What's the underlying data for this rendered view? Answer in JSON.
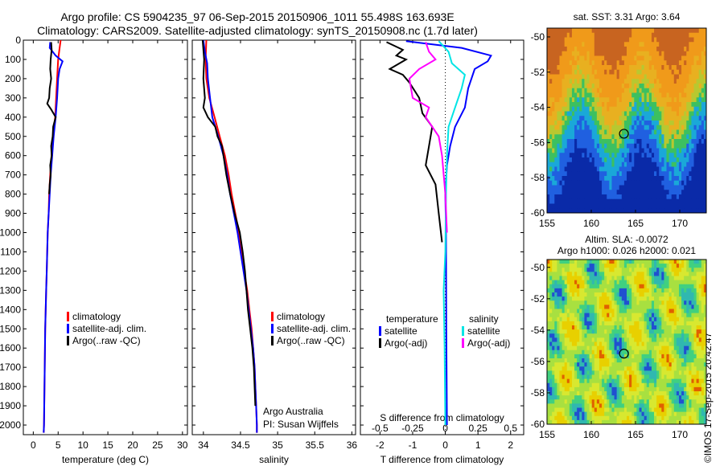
{
  "header": {
    "title_line1": "Argo profile: CS 5904235_97 06-Sep-2015 20150906_1011 55.498S 163.693E",
    "title_line2": "Climatology: CARS2009. Satellite-adjusted climatology: synTS_20150908.nc (1.7d later)"
  },
  "side_label": "©IMOS 17-Sep-2015 20:42:47",
  "colors": {
    "climatology": "#ff0000",
    "satellite": "#0000ff",
    "argo": "#000000",
    "salinity_satellite": "#00e5e5",
    "salinity_argo": "#ff00ff"
  },
  "chart_data": [
    {
      "type": "line",
      "id": "temperature",
      "xlabel": "temperature (deg C)",
      "ylabel": "",
      "xlim": [
        -2,
        31
      ],
      "ylim": [
        2050,
        0
      ],
      "x_ticks": [
        0,
        5,
        10,
        15,
        20,
        25,
        30
      ],
      "y_ticks": [
        0,
        100,
        200,
        300,
        400,
        500,
        600,
        700,
        800,
        900,
        1000,
        1100,
        1200,
        1300,
        1400,
        1500,
        1600,
        1700,
        1800,
        1900,
        2000
      ],
      "legend": [
        "climatology",
        "satellite-adj. clim.",
        "Argo(..raw -QC)"
      ],
      "series": [
        {
          "name": "climatology",
          "color": "#ff0000",
          "points": [
            [
              5.5,
              0
            ],
            [
              5.2,
              60
            ],
            [
              5.0,
              100
            ],
            [
              4.8,
              200
            ],
            [
              4.6,
              300
            ],
            [
              4.4,
              400
            ],
            [
              4.0,
              500
            ],
            [
              3.7,
              600
            ],
            [
              3.4,
              700
            ],
            [
              3.2,
              800
            ],
            [
              3.1,
              900
            ],
            [
              2.9,
              1000
            ],
            [
              2.8,
              1100
            ],
            [
              2.7,
              1200
            ],
            [
              2.6,
              1300
            ],
            [
              2.5,
              1400
            ],
            [
              2.4,
              1500
            ],
            [
              2.35,
              1600
            ],
            [
              2.3,
              1700
            ],
            [
              2.25,
              1800
            ],
            [
              2.2,
              1900
            ],
            [
              2.15,
              2000
            ],
            [
              2.1,
              2040
            ]
          ]
        },
        {
          "name": "satellite-adj. clim.",
          "color": "#0000ff",
          "points": [
            [
              3.4,
              10
            ],
            [
              3.3,
              40
            ],
            [
              4.5,
              80
            ],
            [
              5.9,
              110
            ],
            [
              5.3,
              150
            ],
            [
              5.0,
              200
            ],
            [
              4.8,
              300
            ],
            [
              4.5,
              400
            ],
            [
              4.1,
              500
            ],
            [
              3.8,
              600
            ],
            [
              3.5,
              700
            ],
            [
              3.3,
              800
            ],
            [
              3.1,
              900
            ],
            [
              2.9,
              1000
            ],
            [
              2.8,
              1100
            ],
            [
              2.7,
              1200
            ],
            [
              2.6,
              1300
            ],
            [
              2.5,
              1400
            ],
            [
              2.4,
              1500
            ],
            [
              2.35,
              1600
            ],
            [
              2.3,
              1700
            ],
            [
              2.25,
              1800
            ],
            [
              2.2,
              1900
            ],
            [
              2.15,
              2000
            ],
            [
              2.1,
              2040
            ]
          ]
        },
        {
          "name": "Argo(..raw -QC)",
          "color": "#000000",
          "points": [
            [
              3.6,
              10
            ],
            [
              3.7,
              50
            ],
            [
              3.5,
              100
            ],
            [
              3.4,
              150
            ],
            [
              3.6,
              200
            ],
            [
              3.3,
              250
            ],
            [
              3.2,
              300
            ],
            [
              2.8,
              330
            ],
            [
              3.6,
              360
            ],
            [
              4.5,
              400
            ],
            [
              4.0,
              450
            ],
            [
              3.9,
              500
            ],
            [
              3.6,
              550
            ],
            [
              3.7,
              600
            ],
            [
              3.4,
              650
            ],
            [
              3.5,
              700
            ],
            [
              3.3,
              750
            ],
            [
              3.2,
              800
            ]
          ]
        }
      ]
    },
    {
      "type": "line",
      "id": "salinity",
      "xlabel": "salinity",
      "xlim": [
        33.85,
        36.05
      ],
      "ylim": [
        2050,
        0
      ],
      "x_ticks": [
        34,
        34.5,
        35,
        35.5,
        36
      ],
      "legend": [
        "climatology",
        "satellite-adj. clim.",
        "Argo(..raw -QC)"
      ],
      "series": [
        {
          "name": "climatology",
          "color": "#ff0000",
          "points": [
            [
              34.04,
              0
            ],
            [
              34.03,
              100
            ],
            [
              34.04,
              200
            ],
            [
              34.08,
              300
            ],
            [
              34.15,
              400
            ],
            [
              34.22,
              500
            ],
            [
              34.29,
              600
            ],
            [
              34.34,
              700
            ],
            [
              34.38,
              800
            ],
            [
              34.43,
              900
            ],
            [
              34.48,
              1000
            ],
            [
              34.52,
              1100
            ],
            [
              34.55,
              1200
            ],
            [
              34.59,
              1300
            ],
            [
              34.62,
              1400
            ],
            [
              34.65,
              1500
            ],
            [
              34.67,
              1600
            ],
            [
              34.69,
              1700
            ],
            [
              34.7,
              1800
            ],
            [
              34.71,
              1900
            ],
            [
              34.72,
              2000
            ],
            [
              34.72,
              2040
            ]
          ]
        },
        {
          "name": "satellite-adj. clim.",
          "color": "#0000ff",
          "points": [
            [
              34.0,
              0
            ],
            [
              34.02,
              60
            ],
            [
              34.05,
              120
            ],
            [
              34.06,
              200
            ],
            [
              34.09,
              300
            ],
            [
              34.12,
              400
            ],
            [
              34.2,
              500
            ],
            [
              34.27,
              600
            ],
            [
              34.32,
              700
            ],
            [
              34.36,
              800
            ],
            [
              34.41,
              900
            ],
            [
              34.46,
              1000
            ],
            [
              34.5,
              1100
            ],
            [
              34.54,
              1200
            ],
            [
              34.58,
              1300
            ],
            [
              34.61,
              1400
            ],
            [
              34.64,
              1500
            ],
            [
              34.67,
              1600
            ],
            [
              34.69,
              1700
            ],
            [
              34.7,
              1800
            ],
            [
              34.71,
              1900
            ],
            [
              34.72,
              2000
            ],
            [
              34.72,
              2040
            ]
          ]
        },
        {
          "name": "Argo(..raw -QC)",
          "color": "#000000",
          "points": [
            [
              33.99,
              0
            ],
            [
              34.01,
              100
            ],
            [
              34.0,
              200
            ],
            [
              34.02,
              300
            ],
            [
              34.0,
              350
            ],
            [
              34.06,
              400
            ],
            [
              34.16,
              450
            ],
            [
              34.19,
              500
            ],
            [
              34.25,
              550
            ],
            [
              34.27,
              600
            ],
            [
              34.31,
              700
            ],
            [
              34.36,
              800
            ],
            [
              34.42,
              900
            ],
            [
              34.49,
              1000
            ],
            [
              34.53,
              1100
            ],
            [
              34.56,
              1200
            ],
            [
              34.58,
              1300
            ],
            [
              34.6,
              1400
            ],
            [
              34.63,
              1500
            ],
            [
              34.66,
              1600
            ],
            [
              34.68,
              1700
            ],
            [
              34.69,
              1800
            ],
            [
              34.7,
              1900
            ]
          ]
        }
      ],
      "annotations": [
        "Argo Australia",
        "PI: Susan Wijffels"
      ]
    },
    {
      "type": "line",
      "id": "difference",
      "xlabel": "T difference from climatology",
      "title_bottom": "S difference from climatology",
      "xlim": [
        -2.6,
        2.4
      ],
      "ylim": [
        2050,
        0
      ],
      "x_ticks_T": [
        -2,
        -1,
        0,
        1,
        2
      ],
      "x_ticks_S": [
        "-0.5",
        "-0.25",
        "0",
        "0.25",
        "0.5"
      ],
      "x_ticks_S_pos": [
        -2,
        -1,
        0,
        1,
        2
      ],
      "legend_temperature": {
        "header": "temperature",
        "items": [
          "satellite",
          "Argo(-adj)"
        ]
      },
      "legend_salinity": {
        "header": "salinity",
        "items": [
          "satellite",
          "Argo(-adj)"
        ]
      },
      "series": [
        {
          "name": "temperature satellite",
          "color": "#0000ff",
          "points": [
            [
              -1.2,
              5
            ],
            [
              0.5,
              40
            ],
            [
              1.4,
              80
            ],
            [
              1.3,
              110
            ],
            [
              0.9,
              150
            ],
            [
              0.7,
              250
            ],
            [
              0.6,
              350
            ],
            [
              0.3,
              450
            ],
            [
              0.15,
              550
            ],
            [
              0.05,
              650
            ],
            [
              0.0,
              800
            ],
            [
              0.02,
              1000
            ],
            [
              0.03,
              1500
            ],
            [
              0.05,
              2000
            ]
          ]
        },
        {
          "name": "temperature Argo(-adj)",
          "color": "#000000",
          "points": [
            [
              -1.8,
              10
            ],
            [
              -1.3,
              50
            ],
            [
              -1.5,
              80
            ],
            [
              -1.2,
              100
            ],
            [
              -1.7,
              150
            ],
            [
              -1.3,
              180
            ],
            [
              -1.1,
              220
            ],
            [
              -0.8,
              300
            ],
            [
              -0.7,
              380
            ],
            [
              -0.4,
              450
            ],
            [
              -0.5,
              550
            ],
            [
              -0.6,
              650
            ],
            [
              -0.3,
              750
            ],
            [
              -0.2,
              900
            ],
            [
              -0.1,
              1050
            ]
          ]
        },
        {
          "name": "salinity satellite",
          "color": "#00e5e5",
          "points": [
            [
              -0.2,
              5
            ],
            [
              0.1,
              60
            ],
            [
              0.2,
              120
            ],
            [
              0.6,
              180
            ],
            [
              0.5,
              250
            ],
            [
              0.3,
              350
            ],
            [
              0.1,
              450
            ],
            [
              0.05,
              600
            ],
            [
              0.02,
              800
            ],
            [
              0.0,
              1100
            ],
            [
              -0.05,
              1300
            ],
            [
              -0.02,
              1600
            ],
            [
              0.0,
              2000
            ]
          ]
        },
        {
          "name": "salinity Argo(-adj)",
          "color": "#ff00ff",
          "points": [
            [
              -0.6,
              10
            ],
            [
              -0.5,
              60
            ],
            [
              -0.3,
              100
            ],
            [
              -0.8,
              150
            ],
            [
              -1.1,
              200
            ],
            [
              -1.0,
              300
            ],
            [
              -0.5,
              350
            ],
            [
              -0.6,
              400
            ],
            [
              -0.4,
              450
            ],
            [
              -0.2,
              500
            ],
            [
              -0.1,
              600
            ],
            [
              0.0,
              800
            ],
            [
              0.05,
              1000
            ]
          ]
        }
      ]
    },
    {
      "type": "heatmap",
      "id": "sst_map",
      "title": "sat. SST: 3.31  Argo: 3.64",
      "xlim": [
        155,
        173
      ],
      "ylim": [
        -60,
        -49.5
      ],
      "x_ticks": [
        155,
        160,
        165,
        170
      ],
      "y_ticks": [
        -50,
        -52,
        -54,
        -56,
        -58,
        -60
      ],
      "marker": {
        "lon": 163.69,
        "lat": -55.5
      }
    },
    {
      "type": "heatmap",
      "id": "sla_map",
      "title_line1": "Altim. SLA: -0.0072",
      "title_line2": "Argo h1000: 0.026 h2000: 0.021",
      "xlim": [
        155,
        173
      ],
      "ylim": [
        -60,
        -49.5
      ],
      "x_ticks": [
        155,
        160,
        165,
        170
      ],
      "y_ticks": [
        -50,
        -52,
        -54,
        -56,
        -58,
        -60
      ],
      "marker": {
        "lon": 163.69,
        "lat": -55.5
      }
    }
  ]
}
